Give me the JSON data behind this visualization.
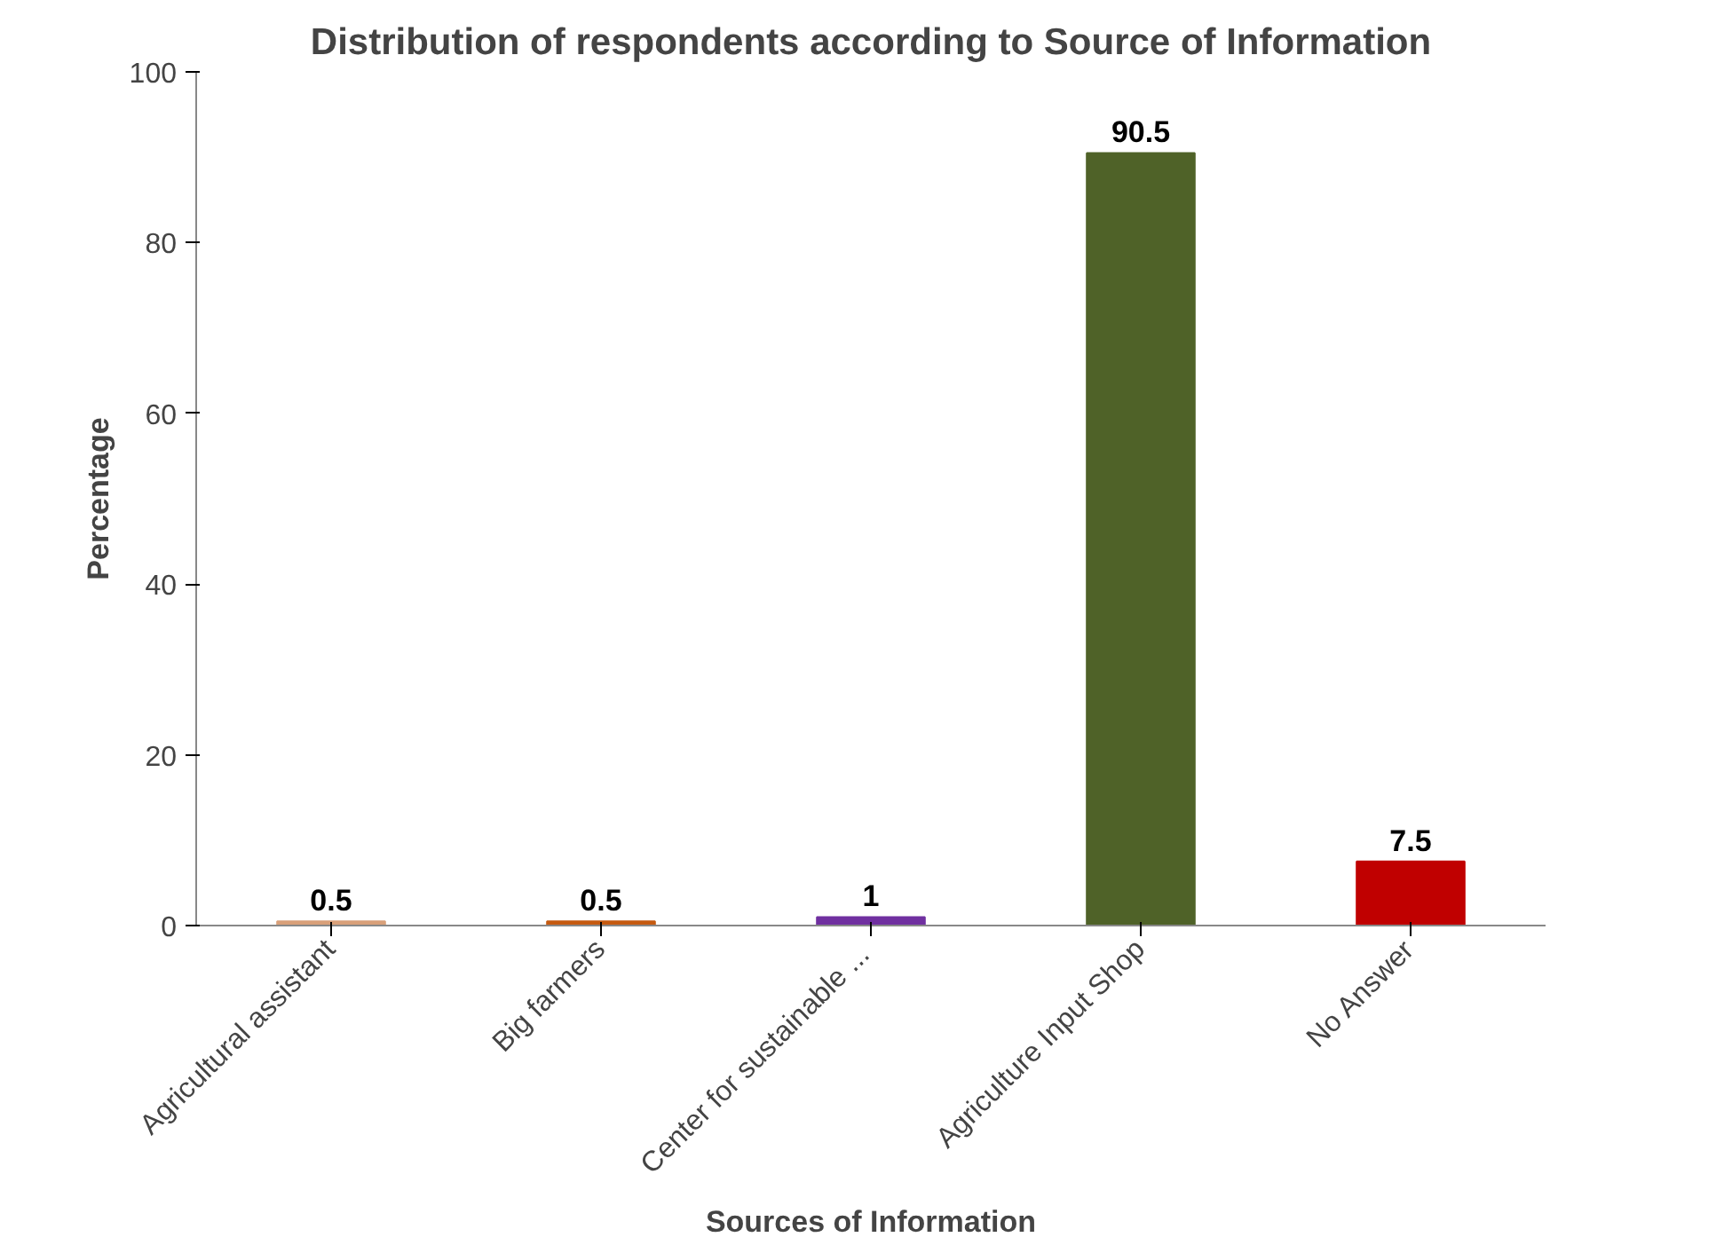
{
  "chart_data": {
    "type": "bar",
    "title": "Distribution of respondents according to Source of Information",
    "xlabel": "Sources of Information",
    "ylabel": "Percentage",
    "categories": [
      "Agricultural assistant",
      "Big farmers",
      "Center  for sustainable ...",
      "Agriculture Input Shop",
      "No Answer"
    ],
    "values": [
      0.5,
      0.5,
      1,
      90.5,
      7.5
    ],
    "colors": [
      "#d9a07a",
      "#c55a11",
      "#7030a0",
      "#4f6228",
      "#c00000"
    ],
    "ylim": [
      0,
      100
    ],
    "yticks": [
      0,
      20,
      40,
      60,
      80,
      100
    ],
    "data_labels": true,
    "grid": false
  }
}
